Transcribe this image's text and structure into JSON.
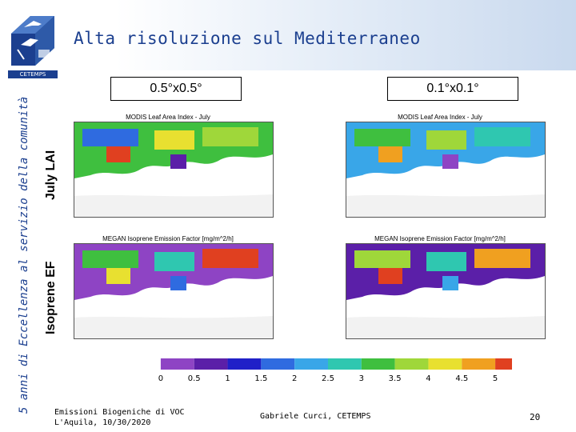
{
  "header": {
    "title": "Alta risoluzione sul Mediterraneo",
    "logo_label": "CETEMPS"
  },
  "sidebar": {
    "text": "5 anni di Eccellenza al servizio della comunità"
  },
  "rows": {
    "lai": "July LAI",
    "isoprene": "Isoprene EF"
  },
  "columns": {
    "left": "0.5°x0.5°",
    "right": "0.1°x0.1°"
  },
  "panels": {
    "lai_left_title": "MODIS Leaf Area Index - July",
    "lai_right_title": "MODIS Leaf Area Index - July",
    "ef_left_title": "MEGAN Isoprene Emission Factor [mg/m^2/h]",
    "ef_right_title": "MEGAN Isoprene Emission Factor [mg/m^2/h]"
  },
  "colorbar": {
    "ticks": [
      "0",
      "0.5",
      "1",
      "1.5",
      "2",
      "2.5",
      "3",
      "3.5",
      "4",
      "4.5",
      "5"
    ],
    "colors": [
      "#ffffff",
      "#8e44c4",
      "#5b1fa8",
      "#2020c8",
      "#2f6be0",
      "#39a6e8",
      "#2fc7b0",
      "#3fbf3f",
      "#9fd73a",
      "#e8e030",
      "#f0a020",
      "#e04020"
    ]
  },
  "footer": {
    "line1": "Emissioni Biogeniche di VOC",
    "line2": "L'Aquila, 10/30/2020",
    "author": "Gabriele Curci, CETEMPS",
    "page": "20"
  }
}
